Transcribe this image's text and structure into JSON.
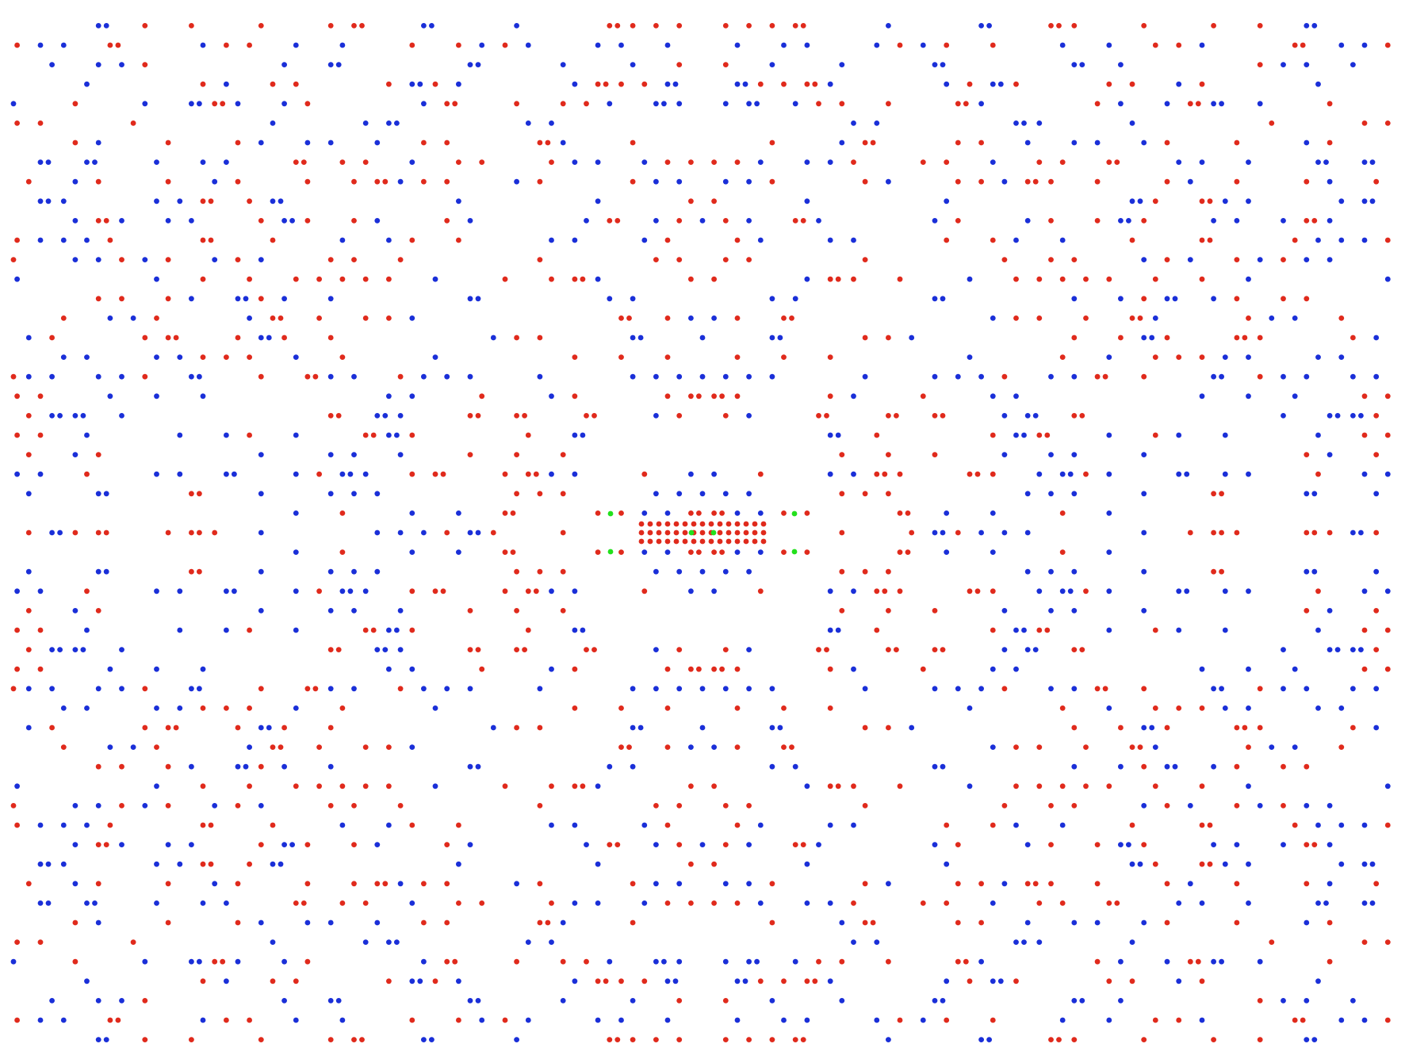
{
  "image": {
    "background_color": "#ffffff",
    "dot_colors": {
      "red": "#e02a1c",
      "blue": "#1a2fd8",
      "green": "#22e01c"
    }
  }
}
